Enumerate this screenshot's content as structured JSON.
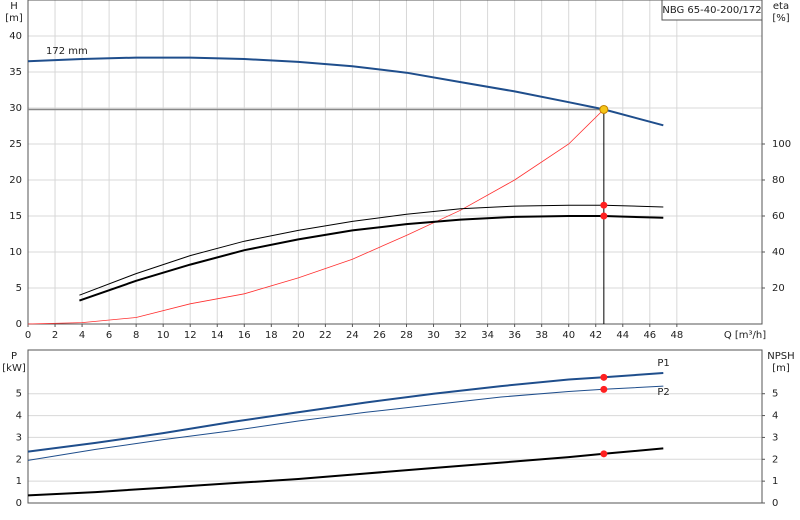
{
  "chart_data": [
    {
      "type": "line",
      "title": "NBG 65-40-200/172",
      "y_label": "H",
      "y_unit": "[m]",
      "y2_label": "eta",
      "y2_unit": "[%]",
      "x_label": "Q [m³/h]",
      "xlim": [
        0,
        54.3
      ],
      "xticks": [
        0,
        2,
        4,
        6,
        8,
        10,
        12,
        14,
        16,
        18,
        20,
        22,
        24,
        26,
        28,
        30,
        32,
        34,
        36,
        38,
        40,
        42,
        44,
        46,
        48
      ],
      "ylim": [
        0,
        45
      ],
      "yticks": [
        0,
        5,
        10,
        15,
        20,
        25,
        30,
        35,
        40
      ],
      "y2lim": [
        0,
        180
      ],
      "y2ticks": [
        20,
        40,
        60,
        80,
        100
      ],
      "grid": true,
      "duty_point": {
        "x": 42.6,
        "y": 29.8,
        "color": "#f5c518"
      },
      "series": [
        {
          "name": "172 mm",
          "color": "#1f4e8c",
          "width": 2,
          "axis": "y",
          "x": [
            0,
            4,
            8,
            12,
            16,
            20,
            24,
            28,
            32,
            36,
            40,
            42.6,
            47
          ],
          "values": [
            36.5,
            36.8,
            37,
            37,
            36.8,
            36.4,
            35.8,
            34.9,
            33.6,
            32.3,
            30.8,
            29.8,
            27.6
          ]
        },
        {
          "color": "#ff3030",
          "width": 0.8,
          "axis": "y",
          "x": [
            0,
            4,
            8,
            12,
            16,
            20,
            24,
            28,
            32,
            36,
            40,
            42.6
          ],
          "values": [
            0,
            0.2,
            0.9,
            2.8,
            4.2,
            6.4,
            9,
            12.3,
            15.8,
            20,
            25,
            29.8
          ]
        },
        {
          "color": "#000000",
          "width": 1,
          "axis": "y2",
          "x": [
            3.8,
            8,
            12,
            16,
            20,
            24,
            28,
            32,
            36,
            40,
            42.6,
            47
          ],
          "values": [
            16,
            28,
            38,
            46,
            52,
            57,
            61,
            64,
            65.5,
            66,
            66,
            65
          ],
          "marker": {
            "x": 42.6,
            "value": 66,
            "color": "#ff2020"
          }
        },
        {
          "color": "#000000",
          "width": 2,
          "axis": "y2",
          "x": [
            3.8,
            8,
            12,
            16,
            20,
            24,
            28,
            32,
            36,
            40,
            42.6,
            47
          ],
          "values": [
            13,
            24,
            33,
            41,
            47,
            52,
            55.5,
            58,
            59.5,
            60,
            60,
            59
          ],
          "marker": {
            "x": 42.6,
            "value": 60,
            "color": "#ff2020"
          }
        }
      ]
    },
    {
      "type": "line",
      "y_label": "P",
      "y_unit": "[kW]",
      "y2_label": "NPSH",
      "y2_unit": "[m]",
      "xlim": [
        0,
        54.3
      ],
      "ylim": [
        0,
        7
      ],
      "yticks": [
        0,
        1,
        2,
        3,
        4,
        5
      ],
      "y2lim": [
        0,
        7
      ],
      "y2ticks": [
        0,
        1,
        2,
        3,
        4,
        5
      ],
      "grid": true,
      "series": [
        {
          "name": "P1",
          "color": "#1f4e8c",
          "width": 2,
          "axis": "y",
          "x": [
            0,
            5,
            10,
            15,
            20,
            25,
            30,
            35,
            40,
            42.6,
            47
          ],
          "values": [
            2.35,
            2.75,
            3.2,
            3.7,
            4.15,
            4.6,
            5.0,
            5.35,
            5.65,
            5.75,
            5.95
          ],
          "marker": {
            "x": 42.6,
            "value": 5.75,
            "color": "#ff2020"
          }
        },
        {
          "name": "P2",
          "color": "#1f4e8c",
          "width": 1,
          "axis": "y",
          "x": [
            0,
            5,
            10,
            15,
            20,
            25,
            30,
            35,
            40,
            42.6,
            47
          ],
          "values": [
            1.95,
            2.45,
            2.9,
            3.3,
            3.75,
            4.15,
            4.5,
            4.85,
            5.1,
            5.2,
            5.35
          ],
          "marker": {
            "x": 42.6,
            "value": 5.2,
            "color": "#ff2020"
          }
        },
        {
          "color": "#000000",
          "width": 2,
          "axis": "y2",
          "x": [
            0,
            5,
            10,
            15,
            20,
            25,
            30,
            35,
            40,
            42.6,
            47
          ],
          "values": [
            0.35,
            0.5,
            0.7,
            0.9,
            1.1,
            1.35,
            1.6,
            1.85,
            2.1,
            2.25,
            2.5
          ],
          "marker": {
            "x": 42.6,
            "value": 2.25,
            "color": "#ff2020"
          }
        }
      ]
    }
  ]
}
